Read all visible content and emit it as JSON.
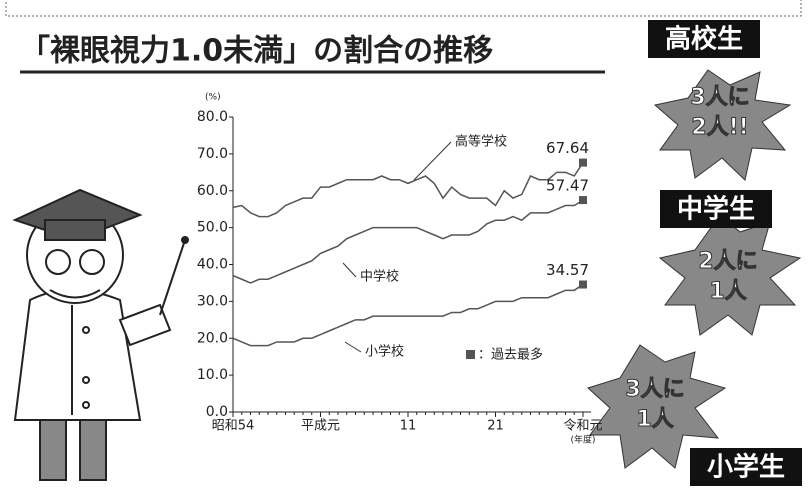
{
  "chart_data": {
    "type": "line",
    "title": "「裸眼視力1.0未満」の割合の推移",
    "y_label": "(%)",
    "x_label": "(年度)",
    "categories": [
      "昭和54",
      null,
      null,
      null,
      null,
      null,
      null,
      null,
      null,
      null,
      "平成元",
      null,
      null,
      null,
      null,
      null,
      null,
      null,
      null,
      null,
      "11",
      null,
      null,
      null,
      null,
      null,
      null,
      null,
      null,
      null,
      "21",
      null,
      null,
      null,
      null,
      null,
      null,
      null,
      null,
      null,
      "令和元"
    ],
    "ylim": [
      0,
      80
    ],
    "yticks": [
      {
        "value": 0,
        "label": "0.0"
      },
      {
        "value": 10,
        "label": "10.0"
      },
      {
        "value": 20,
        "label": "20.0"
      },
      {
        "value": 30,
        "label": "30.0"
      },
      {
        "value": 40,
        "label": "40.0"
      },
      {
        "value": 50,
        "label": "50.0"
      },
      {
        "value": 60,
        "label": "60.0"
      },
      {
        "value": 70,
        "label": "70.0"
      },
      {
        "value": 80,
        "label": "80.0"
      }
    ],
    "grid": false,
    "series": [
      {
        "name": "高等学校",
        "color": "#555555",
        "values": [
          55.5,
          56,
          54,
          53,
          53,
          54,
          56,
          57,
          58,
          58,
          61,
          61,
          62,
          63,
          63,
          63,
          63,
          64,
          63,
          63,
          62,
          63,
          64,
          62,
          58,
          61,
          59,
          58,
          58,
          58,
          56,
          60,
          58,
          59,
          64,
          63,
          63,
          65,
          65,
          64,
          67.64
        ]
      },
      {
        "name": "中学校",
        "color": "#555555",
        "values": [
          37,
          36,
          35,
          36,
          36,
          37,
          38,
          39,
          40,
          41,
          43,
          44,
          45,
          47,
          48,
          49,
          50,
          50,
          50,
          50,
          50,
          50,
          49,
          48,
          47,
          48,
          48,
          48,
          49,
          51,
          52,
          52,
          53,
          52,
          54,
          54,
          54,
          55,
          56,
          56,
          57.47
        ]
      },
      {
        "name": "小学校",
        "color": "#555555",
        "values": [
          20,
          19,
          18,
          18,
          18,
          19,
          19,
          19,
          20,
          20,
          21,
          22,
          23,
          24,
          25,
          25,
          26,
          26,
          26,
          26,
          26,
          26,
          26,
          26,
          26,
          27,
          27,
          28,
          28,
          29,
          30,
          30,
          30,
          31,
          31,
          31,
          31,
          32,
          33,
          33,
          34.57
        ]
      }
    ],
    "record_legend": "：過去最多",
    "annotations": [
      {
        "badge": "高校生",
        "lines": [
          "3人に",
          "2人!!"
        ]
      },
      {
        "badge": "中学生",
        "lines": [
          "2人に",
          "1人"
        ]
      },
      {
        "badge": "小学生",
        "lines": [
          "3人に",
          "1人"
        ]
      }
    ]
  }
}
